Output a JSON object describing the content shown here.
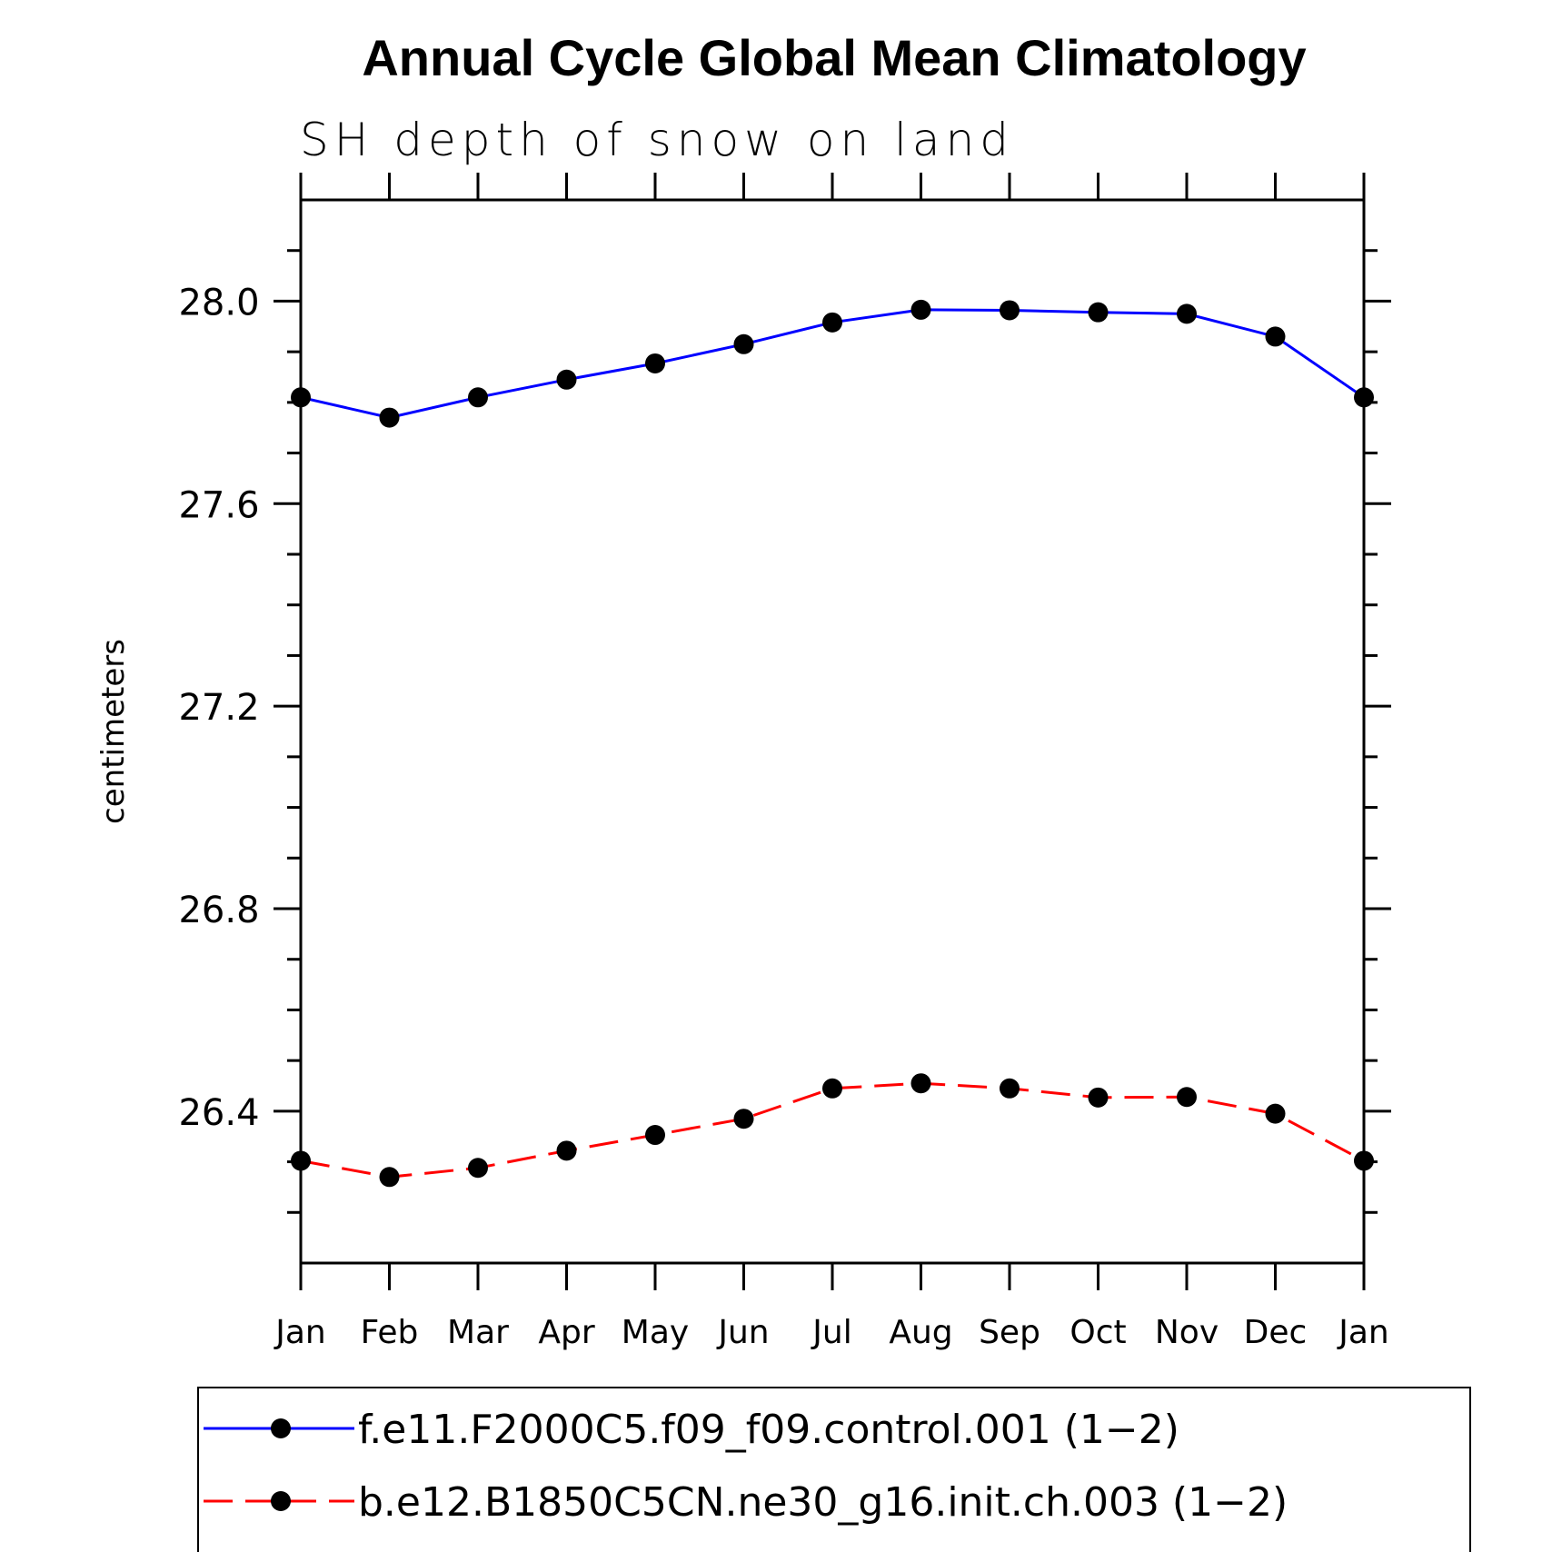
{
  "chart_data": {
    "type": "line",
    "title": "Annual Cycle Global Mean Climatology",
    "subtitle": "SH depth of snow on land",
    "ylabel": "centimeters",
    "xlabel": "",
    "categories": [
      "Jan",
      "Feb",
      "Mar",
      "Apr",
      "May",
      "Jun",
      "Jul",
      "Aug",
      "Sep",
      "Oct",
      "Nov",
      "Dec",
      "Jan"
    ],
    "ylim": [
      26.1,
      28.2
    ],
    "yticks": [
      26.4,
      26.8,
      27.2,
      27.6,
      28.0
    ],
    "ytick_labels": [
      "26.4",
      "26.8",
      "27.2",
      "27.6",
      "28.0"
    ],
    "grid": false,
    "legend_position": "bottom",
    "series": [
      {
        "name": "f.e11.F2000C5.f09_f09.control.001 (1-2)",
        "legend_label": "f.e11.F2000C5.f09_f09.control.001 (1−2)",
        "color": "#0000ff",
        "style": "solid",
        "marker": "circle",
        "values": [
          27.81,
          27.77,
          27.81,
          27.845,
          27.877,
          27.915,
          27.958,
          27.983,
          27.982,
          27.978,
          27.975,
          27.93,
          27.81
        ]
      },
      {
        "name": "b.e12.B1850C5CN.ne30_g16.init.ch.003 (1-2)",
        "legend_label": "b.e12.B1850C5CN.ne30_g16.init.ch.003 (1−2)",
        "color": "#ff0000",
        "style": "dashed",
        "marker": "circle",
        "values": [
          26.302,
          26.27,
          26.288,
          26.322,
          26.353,
          26.385,
          26.445,
          26.455,
          26.445,
          26.427,
          26.428,
          26.395,
          26.302
        ]
      }
    ]
  }
}
